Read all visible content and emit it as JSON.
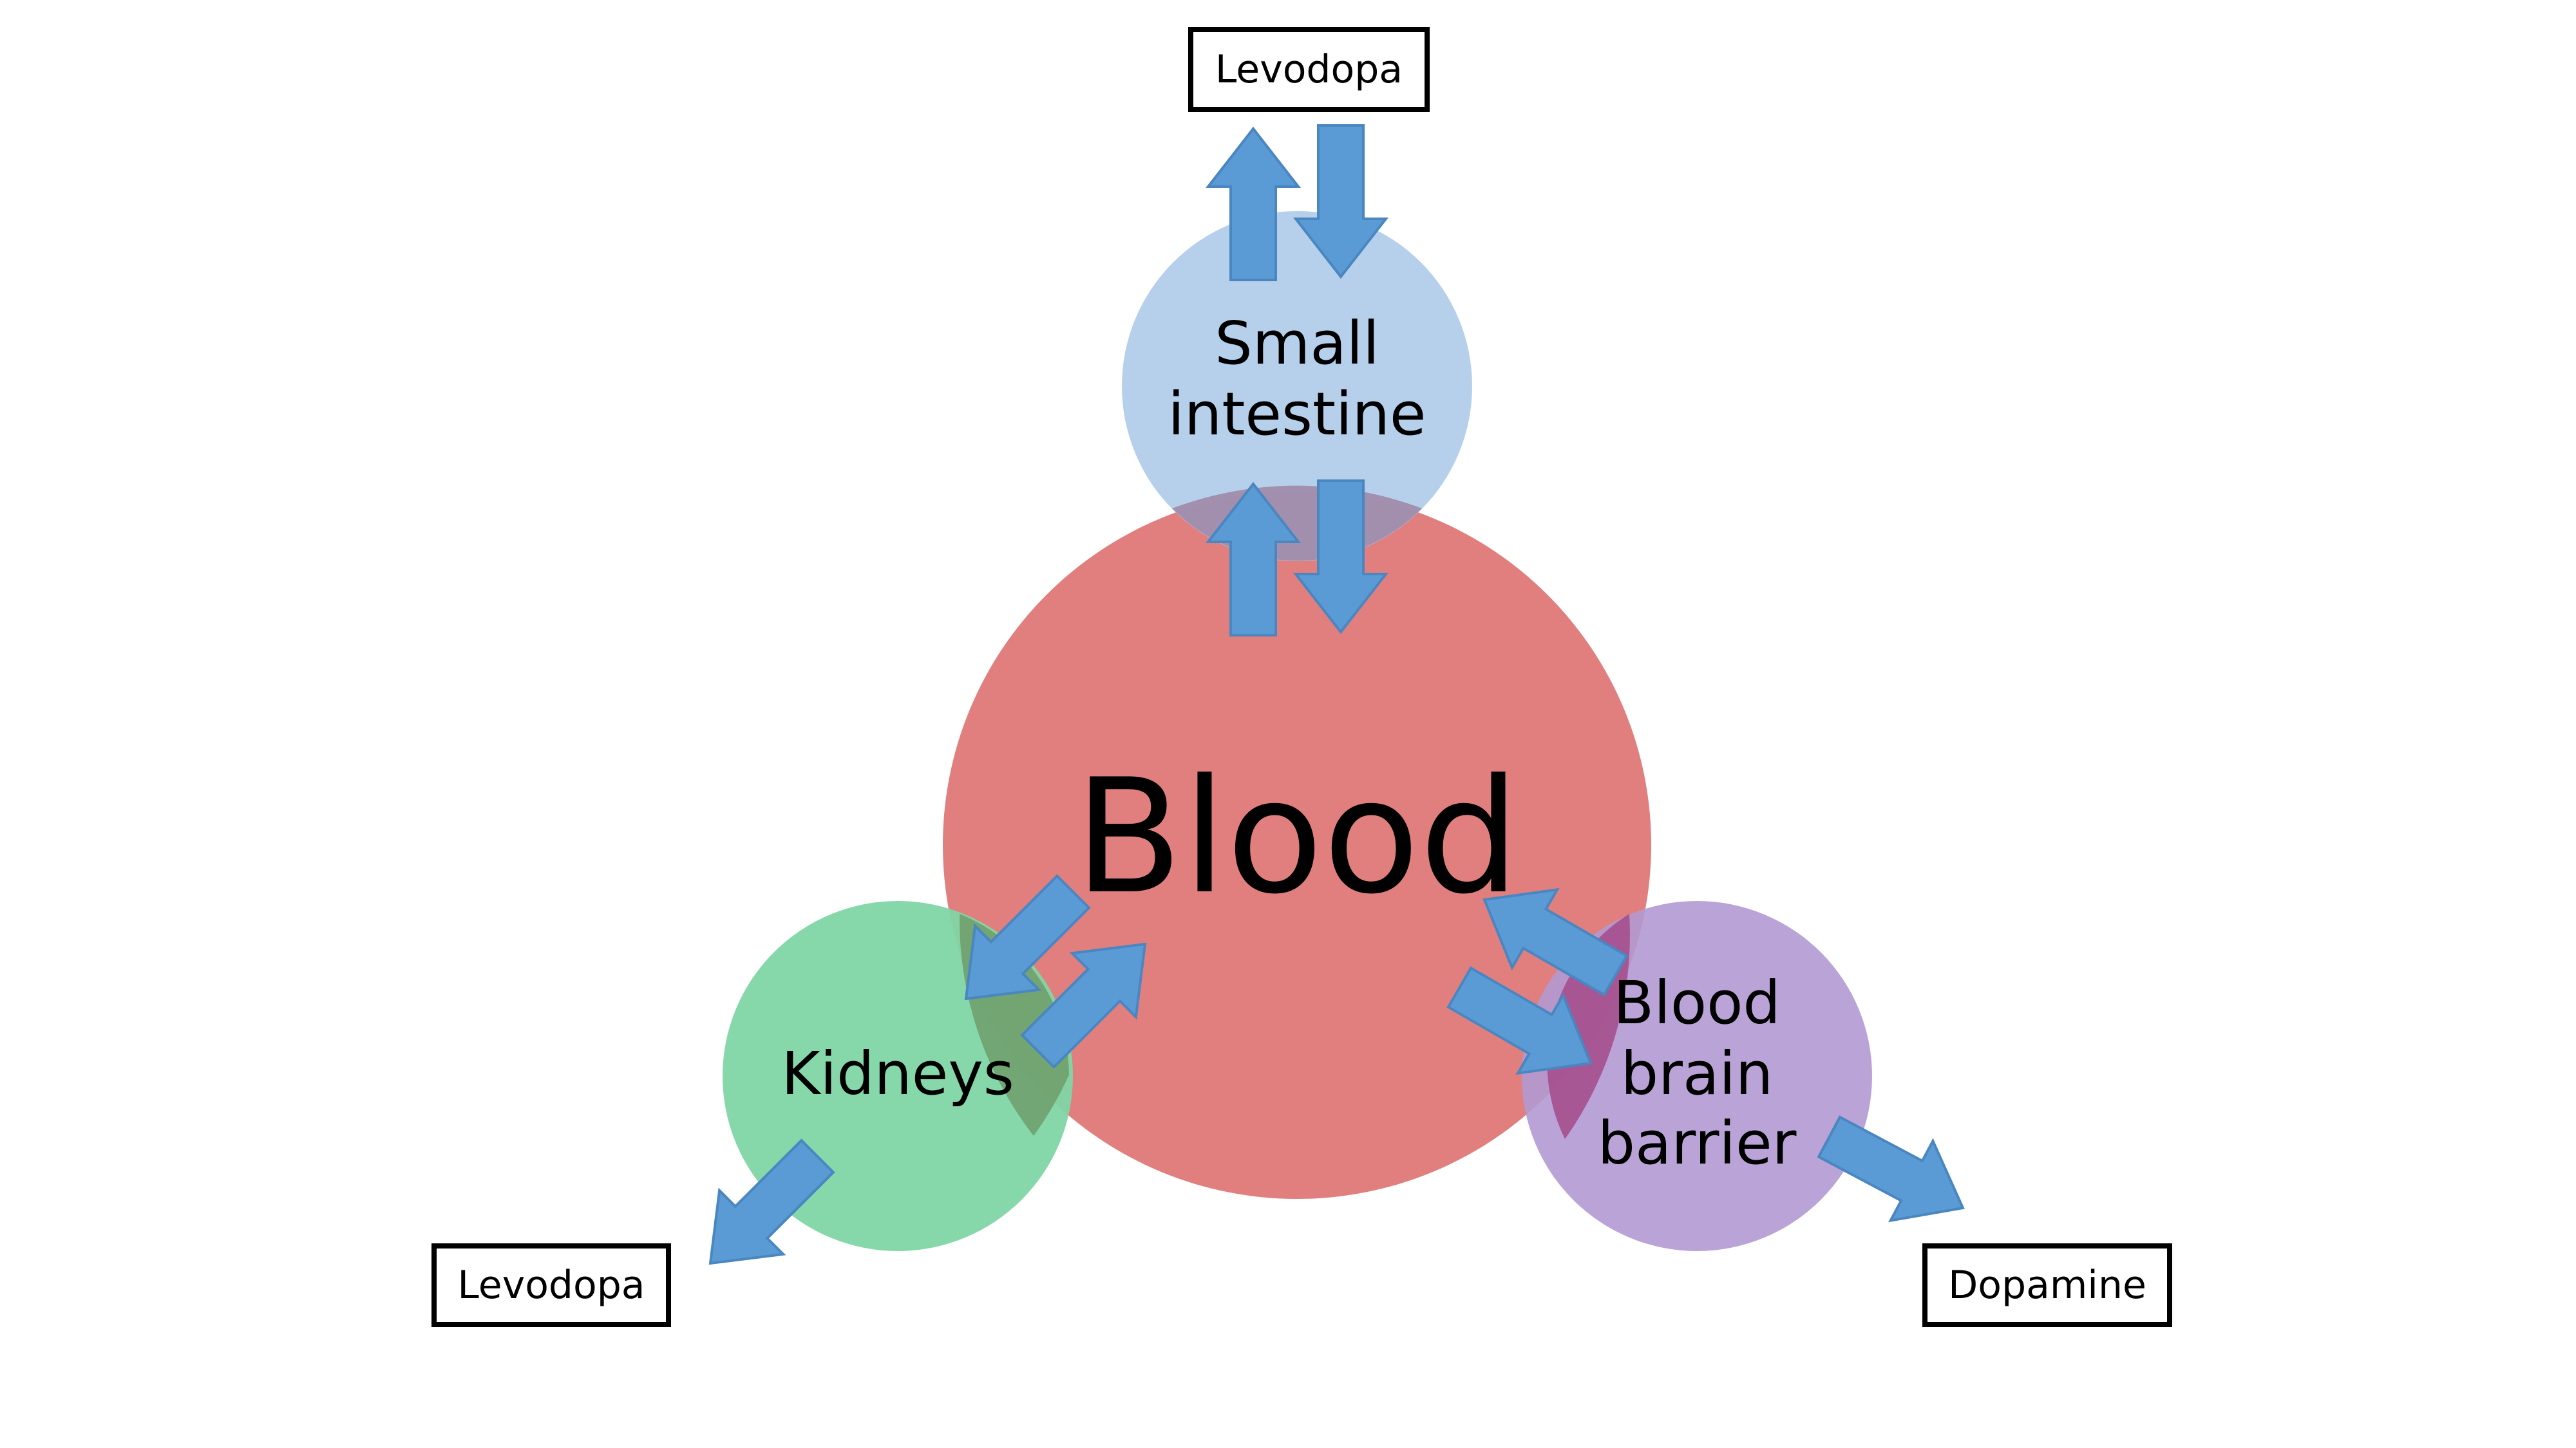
{
  "diagram": {
    "center": {
      "label": "Blood",
      "color": "#e07b7b"
    },
    "nodes": {
      "small_intestine": {
        "line1": "Small",
        "line2": "intestine",
        "color": "#aecbe9"
      },
      "kidneys": {
        "label": "Kidneys",
        "color": "#7fd6a6"
      },
      "bbb": {
        "line1": "Blood",
        "line2": "brain",
        "line3": "barrier",
        "color": "#b39ad3"
      }
    },
    "boxes": {
      "top": "Levodopa",
      "left": "Levodopa",
      "right": "Dopamine"
    },
    "arrow_color": "#5b9bd5"
  }
}
